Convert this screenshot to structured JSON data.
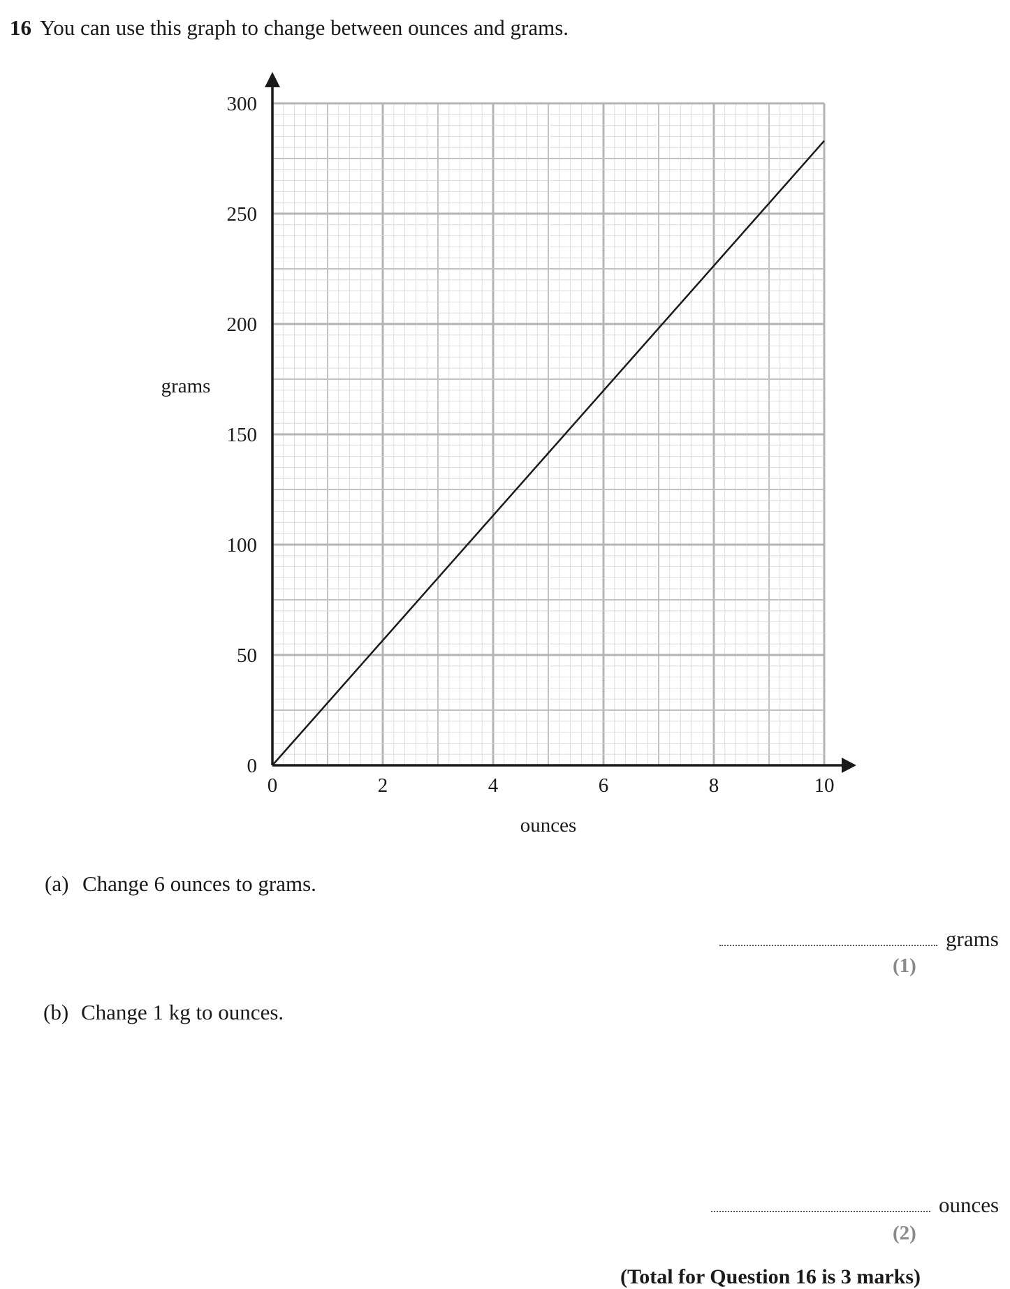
{
  "question": {
    "number": "16",
    "prompt": "You can use this graph to change between ounces and grams."
  },
  "chart_data": {
    "type": "line",
    "xlabel": "ounces",
    "ylabel": "grams",
    "xlim": [
      0,
      10
    ],
    "ylim": [
      0,
      300
    ],
    "x_ticks": [
      "0",
      "2",
      "4",
      "6",
      "8",
      "10"
    ],
    "y_ticks": [
      "0",
      "50",
      "100",
      "150",
      "200",
      "250",
      "300"
    ],
    "grid": true,
    "series": [
      {
        "x": [
          0,
          10
        ],
        "y": [
          0,
          283
        ]
      }
    ]
  },
  "parts": [
    {
      "letter": "(a)",
      "text": "Change 6 ounces to grams.",
      "unit": "grams",
      "marks": "(1)"
    },
    {
      "letter": "(b)",
      "text": "Change 1 kg to ounces.",
      "unit": "ounces",
      "marks": "(2)"
    }
  ],
  "total": "(Total for Question 16 is 3 marks)"
}
